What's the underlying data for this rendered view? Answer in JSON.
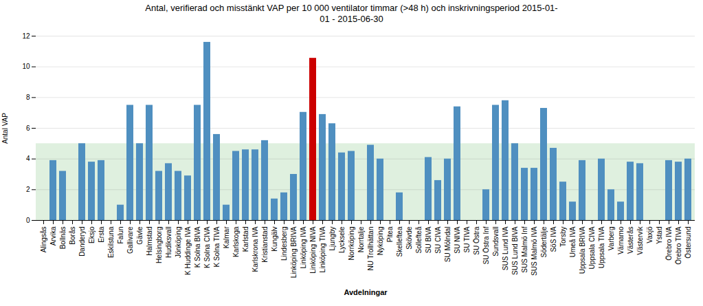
{
  "chart_data": {
    "type": "bar",
    "title": "Antal, verifierad och misstänkt VAP per 10 000 ventilator timmar (>48 h) och inskrivningsperiod 2015-01-\n01 - 2015-06-30",
    "xlabel": "Avdelningar",
    "ylabel": "Antal VAP",
    "categories": [
      "Alingsås",
      "Arvika",
      "Bollnäs",
      "Borås",
      "Danderyd",
      "Eksjo",
      "Ersta",
      "Eskilstuna",
      "Falun",
      "Gallivare",
      "Gävle",
      "Halmstad",
      "Helsingborg",
      "Hudiksvall",
      "Jönköping",
      "K Huddinge IVA",
      "K Solna BIVA",
      "K Solna CIVA",
      "K Solna TIVA",
      "Kalmar",
      "Karlskoga",
      "Karlstad",
      "Karlskrona IVA",
      "Kristianstad",
      "Kungälv",
      "Lindesberg",
      "Linköping BRIVA",
      "Linköping IVA",
      "Linköping NIVA",
      "Linköping TIVA",
      "Ljungby",
      "Lycksele",
      "Norrköping",
      "Norrtalje",
      "NU Trollhättan",
      "Nyköping",
      "Pitea",
      "Skelleftea",
      "Skövde",
      "Sollefteå",
      "SU BIVA",
      "SU CIVA",
      "SU Mölndal",
      "SU NIVA",
      "SU TIVA",
      "SU Östra",
      "SU Östra Inf",
      "Sundsvall",
      "SUS Lund IVA",
      "SUS Lund BIVA",
      "SUS Malmö Inf",
      "SUS Malmö IVA",
      "Södertälje",
      "SöS IVA",
      "Torsby",
      "Umeå IVA",
      "Uppsala BRIVA",
      "Uppsala CIVA",
      "Uppsala TIVA",
      "Varberg",
      "Värnamo",
      "Västerås",
      "Västervik",
      "Vaxjö",
      "Ystad",
      "Örebro IVA",
      "Örebro TIVA",
      "Östersund"
    ],
    "values": [
      0,
      3.9,
      3.2,
      0,
      5.0,
      3.8,
      3.9,
      0,
      1.0,
      7.5,
      5.0,
      7.5,
      3.2,
      3.7,
      3.2,
      2.9,
      7.5,
      11.6,
      5.6,
      1.0,
      4.5,
      4.6,
      4.6,
      5.2,
      1.4,
      1.8,
      3.0,
      7.04,
      10.56,
      6.9,
      6.3,
      4.4,
      4.5,
      0,
      4.9,
      4.0,
      0,
      1.8,
      0,
      0,
      4.1,
      2.6,
      4.0,
      7.4,
      0,
      0,
      2.0,
      7.5,
      7.8,
      5.0,
      3.4,
      3.4,
      7.3,
      4.7,
      2.5,
      1.2,
      3.9,
      0,
      4.0,
      2.0,
      1.2,
      3.8,
      3.7,
      0,
      0,
      3.9,
      3.8,
      4.0
    ],
    "colors": [
      "#4f8fc0",
      "#4f8fc0",
      "#4f8fc0",
      "#4f8fc0",
      "#4f8fc0",
      "#4f8fc0",
      "#4f8fc0",
      "#4f8fc0",
      "#4f8fc0",
      "#4f8fc0",
      "#4f8fc0",
      "#4f8fc0",
      "#4f8fc0",
      "#4f8fc0",
      "#4f8fc0",
      "#4f8fc0",
      "#4f8fc0",
      "#4f8fc0",
      "#4f8fc0",
      "#4f8fc0",
      "#4f8fc0",
      "#4f8fc0",
      "#4f8fc0",
      "#4f8fc0",
      "#4f8fc0",
      "#4f8fc0",
      "#4f8fc0",
      "#4f8fc0",
      "#cc0000",
      "#4f8fc0",
      "#4f8fc0",
      "#4f8fc0",
      "#4f8fc0",
      "#4f8fc0",
      "#4f8fc0",
      "#4f8fc0",
      "#4f8fc0",
      "#4f8fc0",
      "#4f8fc0",
      "#4f8fc0",
      "#4f8fc0",
      "#4f8fc0",
      "#4f8fc0",
      "#4f8fc0",
      "#4f8fc0",
      "#4f8fc0",
      "#4f8fc0",
      "#4f8fc0",
      "#4f8fc0",
      "#4f8fc0",
      "#4f8fc0",
      "#4f8fc0",
      "#4f8fc0",
      "#4f8fc0",
      "#4f8fc0",
      "#4f8fc0",
      "#4f8fc0",
      "#4f8fc0",
      "#4f8fc0",
      "#4f8fc0",
      "#4f8fc0",
      "#4f8fc0",
      "#4f8fc0",
      "#4f8fc0",
      "#4f8fc0",
      "#4f8fc0",
      "#4f8fc0",
      "#4f8fc0"
    ],
    "band": {
      "from": 0,
      "to": 5,
      "color": "#dff0df"
    },
    "ylim": [
      0,
      12
    ],
    "yticks": [
      0,
      2,
      4,
      6,
      8,
      10,
      12
    ],
    "grid": true
  }
}
